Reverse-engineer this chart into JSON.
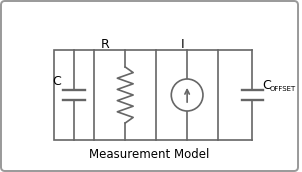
{
  "title": "Measurement Model",
  "background_color": "#ffffff",
  "line_color": "#666666",
  "text_color": "#000000",
  "label_C": "C",
  "label_R": "R",
  "label_I": "I",
  "label_COFFSET_main": "C",
  "label_COFFSET_sub": "OFFSET",
  "label_title": "Measurement Model",
  "outer_lw": 1.4,
  "inner_lw": 1.2,
  "comp_lw": 1.2
}
